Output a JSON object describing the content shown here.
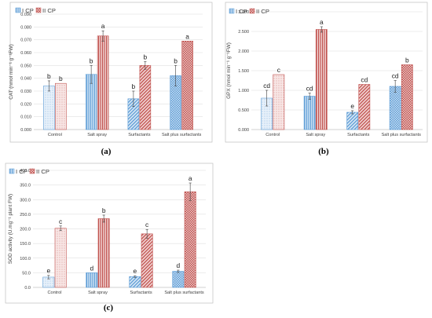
{
  "colors": {
    "series1": "#5b9bd5",
    "series2": "#c0504d",
    "grid": "#d9d9d9",
    "frame": "#bfbfbf"
  },
  "chart_data": [
    {
      "type": "bar",
      "panel_label": "(a)",
      "ylabel": "CAT (nmol min⁻¹ g⁻¹FW)",
      "ylim": [
        0,
        0.09
      ],
      "yticks": [
        "0.000",
        "0.010",
        "0.020",
        "0.030",
        "0.040",
        "0.050",
        "0.060",
        "0.070",
        "0.080",
        "0.090"
      ],
      "categories": [
        "Control",
        "Salt spray",
        "Surfactants",
        "Salt plus surfactants"
      ],
      "legend_position": "top-left",
      "series": [
        {
          "name": "I CP",
          "values": [
            0.034,
            0.043,
            0.024,
            0.042
          ],
          "errors": [
            0.004,
            0.007,
            0.006,
            0.008
          ],
          "letters": [
            "b",
            "b",
            "b",
            "b"
          ]
        },
        {
          "name": "II CP",
          "values": [
            0.036,
            0.073,
            0.05,
            0.069
          ],
          "errors": [
            0.0,
            0.004,
            0.003,
            0.0
          ],
          "letters": [
            "b",
            "a",
            "b",
            "a"
          ]
        }
      ]
    },
    {
      "type": "bar",
      "panel_label": "(b)",
      "ylabel": "GPX (nmol min⁻¹ g⁻¹FW)",
      "ylim": [
        0,
        3
      ],
      "yticks": [
        "0.000",
        "0.500",
        "1.000",
        "1.500",
        "2.000",
        "2.500",
        "3.000"
      ],
      "categories": [
        "Control",
        "Salt spray",
        "Surfactants",
        "Salt plus surfactants"
      ],
      "legend_position": "top-left",
      "series": [
        {
          "name": "I CP",
          "values": [
            0.8,
            0.85,
            0.44,
            1.1
          ],
          "errors": [
            0.2,
            0.08,
            0.04,
            0.15
          ],
          "letters": [
            "cd",
            "cd",
            "e",
            "cd"
          ]
        },
        {
          "name": "II CP",
          "values": [
            1.4,
            2.55,
            1.15,
            1.65
          ],
          "errors": [
            0.0,
            0.07,
            0.0,
            0.0
          ],
          "letters": [
            "c",
            "a",
            "cd",
            "b"
          ]
        }
      ]
    },
    {
      "type": "bar",
      "panel_label": "(c)",
      "ylabel": "SOD activity (U.mg⁻¹ plant FW)",
      "ylim": [
        0,
        400
      ],
      "yticks": [
        "0.0",
        "50.0",
        "100.0",
        "150.0",
        "200.0",
        "250.0",
        "300.0",
        "350.0",
        "400.0"
      ],
      "categories": [
        "Control",
        "Salt spray",
        "Surfactants",
        "Salt plus surfactants"
      ],
      "legend_position": "top-left",
      "series": [
        {
          "name": "I CP",
          "values": [
            35,
            50,
            37,
            55
          ],
          "errors": [
            6,
            0,
            3,
            4
          ],
          "letters": [
            "e",
            "d",
            "e",
            "d"
          ]
        },
        {
          "name": "II CP",
          "values": [
            202,
            235,
            183,
            327
          ],
          "errors": [
            8,
            12,
            15,
            30
          ],
          "letters": [
            "c",
            "b",
            "c",
            "a"
          ]
        }
      ]
    }
  ]
}
